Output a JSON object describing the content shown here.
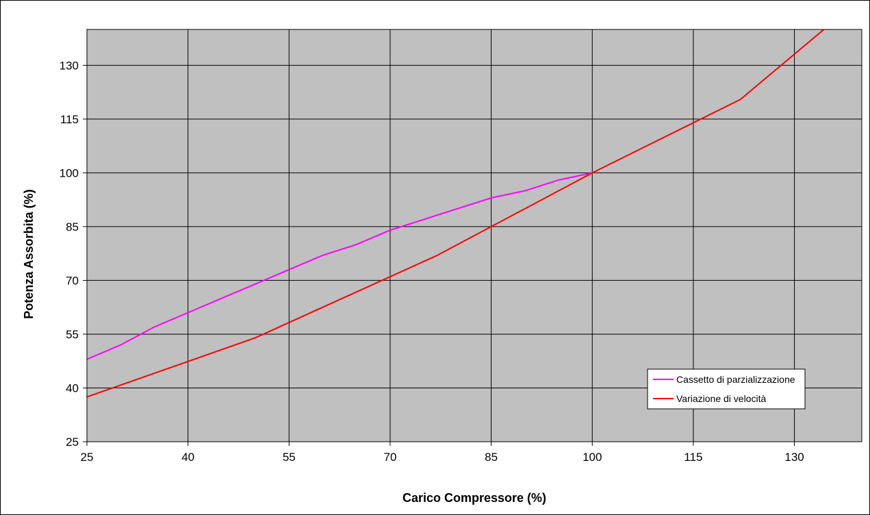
{
  "chart_data": {
    "type": "line",
    "xlabel": "Carico Compressore (%)",
    "ylabel": "Potenza Assorbita (%)",
    "xlim": [
      25,
      140
    ],
    "ylim": [
      25,
      140
    ],
    "x_ticks": [
      25,
      40,
      55,
      70,
      85,
      100,
      115,
      130
    ],
    "y_ticks": [
      25,
      40,
      55,
      70,
      85,
      100,
      115,
      130
    ],
    "grid": true,
    "legend_position": "bottom-right",
    "colors": {
      "plot_background": "#c0c0c0",
      "grid": "#000000",
      "series_magenta": "#ff00ff",
      "series_red": "#ff0000"
    },
    "series": [
      {
        "name": "Cassetto di parzializzazione",
        "color": "#ff00ff",
        "points": [
          [
            25,
            48
          ],
          [
            30,
            52
          ],
          [
            35,
            57
          ],
          [
            40,
            61
          ],
          [
            45,
            65
          ],
          [
            50,
            69
          ],
          [
            55,
            73
          ],
          [
            60,
            77
          ],
          [
            65,
            80
          ],
          [
            70,
            84
          ],
          [
            75,
            87
          ],
          [
            80,
            90
          ],
          [
            85,
            93
          ],
          [
            90,
            95
          ],
          [
            95,
            98
          ],
          [
            100,
            100
          ]
        ]
      },
      {
        "name": "Variazione di velocità",
        "color": "#ff0000",
        "points": [
          [
            25,
            37.5
          ],
          [
            50,
            54
          ],
          [
            77,
            77
          ],
          [
            100,
            100
          ],
          [
            122,
            120.5
          ],
          [
            135,
            141
          ]
        ]
      }
    ]
  }
}
